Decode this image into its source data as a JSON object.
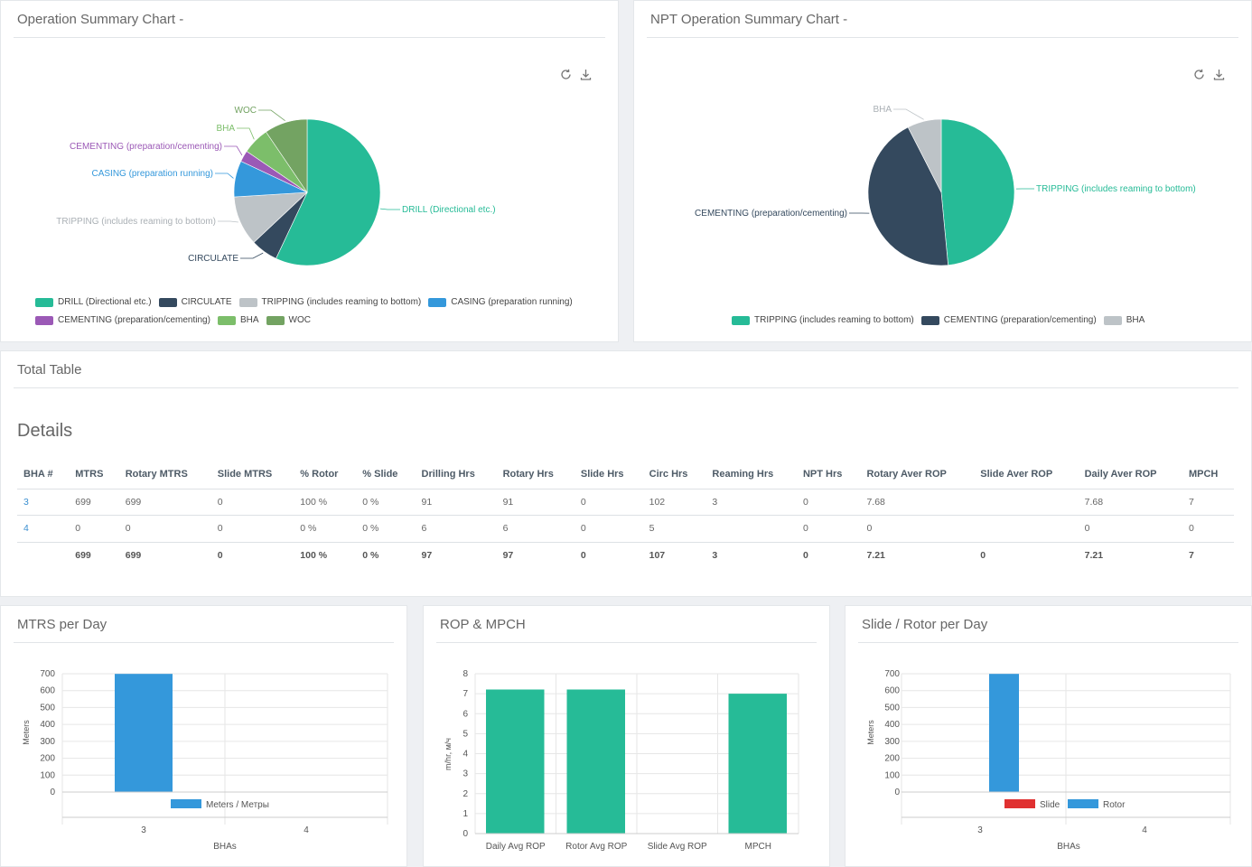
{
  "panels": {
    "op_summary_title": "Operation Summary Chart -",
    "npt_summary_title": "NPT Operation Summary Chart -",
    "total_table_title": "Total Table",
    "details_heading": "Details",
    "mtrs_per_day_title": "MTRS per Day",
    "rop_mpch_title": "ROP & MPCH",
    "slide_rotor_title": "Slide / Rotor per Day"
  },
  "icons": {
    "refresh": "refresh-icon",
    "download": "download-icon"
  },
  "chart_data": [
    {
      "type": "pie",
      "title": "Operation Summary Chart -",
      "legend_position": "bottom",
      "slices": [
        {
          "label": "DRILL (Directional etc.)",
          "value": 57,
          "color": "#26bb97"
        },
        {
          "label": "CIRCULATE",
          "value": 6,
          "color": "#34495e"
        },
        {
          "label": "TRIPPING (includes reaming to bottom)",
          "value": 11,
          "color": "#bdc3c7"
        },
        {
          "label": "CASING (preparation running)",
          "value": 8,
          "color": "#3498db"
        },
        {
          "label": "CEMENTING (preparation/cementing)",
          "value": 2.5,
          "color": "#9b59b6"
        },
        {
          "label": "BHA",
          "value": 6,
          "color": "#7cbe6a"
        },
        {
          "label": "WOC",
          "value": 9.5,
          "color": "#73a362"
        }
      ]
    },
    {
      "type": "pie",
      "title": "NPT Operation Summary Chart -",
      "legend_position": "bottom",
      "slices": [
        {
          "label": "TRIPPING (includes reaming to bottom)",
          "value": 48.5,
          "color": "#26bb97"
        },
        {
          "label": "CEMENTING (preparation/cementing)",
          "value": 44,
          "color": "#34495e"
        },
        {
          "label": "BHA",
          "value": 7.5,
          "color": "#bdc3c7"
        }
      ]
    },
    {
      "type": "bar",
      "title": "MTRS per Day",
      "categories": [
        "3",
        "4"
      ],
      "series": [
        {
          "name": "Meters / Метры",
          "values": [
            699,
            0
          ],
          "color": "#3498db"
        }
      ],
      "xlabel": "BHAs",
      "ylabel": "Meters",
      "ylim": [
        0,
        700
      ],
      "yticks": [
        "0",
        "100",
        "200",
        "300",
        "400",
        "500",
        "600",
        "700"
      ],
      "legend_position": "bottom"
    },
    {
      "type": "bar",
      "title": "ROP & MPCH",
      "categories": [
        "Daily Avg ROP",
        "Rotor Avg ROP",
        "Slide Avg ROP",
        "MPCH"
      ],
      "series": [
        {
          "values": [
            7.21,
            7.21,
            0,
            7
          ],
          "color": "#26bb97"
        }
      ],
      "xlabel": "",
      "ylabel": "m/hr, м/ч",
      "ylim": [
        0,
        8
      ],
      "yticks": [
        "0",
        "1",
        "2",
        "3",
        "4",
        "5",
        "6",
        "7",
        "8"
      ]
    },
    {
      "type": "bar",
      "title": "Slide / Rotor per Day",
      "categories": [
        "3",
        "4"
      ],
      "series": [
        {
          "name": "Slide",
          "values": [
            0,
            0
          ],
          "color": "#e03131"
        },
        {
          "name": "Rotor",
          "values": [
            699,
            0
          ],
          "color": "#3498db"
        }
      ],
      "xlabel": "BHAs",
      "ylabel": "Meters",
      "ylim": [
        0,
        700
      ],
      "yticks": [
        "0",
        "100",
        "200",
        "300",
        "400",
        "500",
        "600",
        "700"
      ],
      "legend_position": "bottom"
    }
  ],
  "table": {
    "headers": [
      "BHA #",
      "MTRS",
      "Rotary MTRS",
      "Slide MTRS",
      "% Rotor",
      "% Slide",
      "Drilling Hrs",
      "Rotary Hrs",
      "Slide Hrs",
      "Circ Hrs",
      "Reaming Hrs",
      "NPT Hrs",
      "Rotary Aver ROP",
      "Slide Aver ROP",
      "Daily Aver ROP",
      "MPCH"
    ],
    "rows": [
      [
        "3",
        "699",
        "699",
        "0",
        "100 %",
        "0 %",
        "91",
        "91",
        "0",
        "102",
        "3",
        "0",
        "7.68",
        "",
        "7.68",
        "7"
      ],
      [
        "4",
        "0",
        "0",
        "0",
        "0 %",
        "0 %",
        "6",
        "6",
        "0",
        "5",
        "",
        "0",
        "0",
        "",
        "0",
        "0"
      ]
    ],
    "total": [
      "",
      "699",
      "699",
      "0",
      "100 %",
      "0 %",
      "97",
      "97",
      "0",
      "107",
      "3",
      "0",
      "7.21",
      "0",
      "7.21",
      "7"
    ]
  }
}
